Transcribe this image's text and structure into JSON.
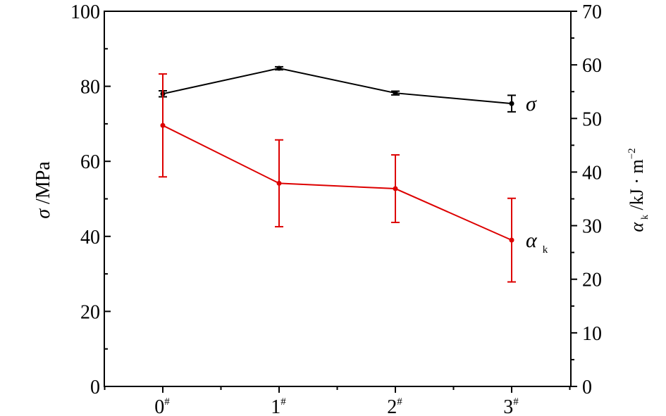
{
  "chart_data": {
    "type": "line",
    "categories": [
      "0",
      "1",
      "2",
      "3"
    ],
    "category_superscript": "#",
    "left_axis": {
      "label_symbol": "σ",
      "label_unit": " /MPa",
      "range": [
        0,
        100
      ],
      "major_ticks": [
        0,
        20,
        40,
        60,
        80,
        100
      ],
      "tick_labels": [
        "0",
        "20",
        "40",
        "60",
        "80",
        "100"
      ]
    },
    "right_axis": {
      "label_symbol": "α",
      "label_subscript": "k",
      "label_unit": " /kJ · m",
      "label_exponent": "−2",
      "range": [
        0,
        70
      ],
      "major_ticks": [
        0,
        10,
        20,
        30,
        40,
        50,
        60,
        70
      ],
      "tick_labels": [
        "0",
        "10",
        "20",
        "30",
        "40",
        "50",
        "60",
        "70"
      ]
    },
    "series": [
      {
        "name": "σ",
        "axis": "left",
        "color": "#000000",
        "values": [
          78.0,
          84.8,
          78.2,
          75.4
        ],
        "err": [
          0.8,
          0.4,
          0.5,
          2.2
        ]
      },
      {
        "name": "α",
        "name_subscript": "k",
        "axis": "right",
        "color": "#dd0000",
        "values": [
          48.7,
          37.9,
          36.9,
          27.3
        ],
        "err": [
          9.6,
          8.1,
          6.3,
          7.8
        ]
      }
    ],
    "grid": false,
    "legend": "inline labels at right end of each series"
  }
}
